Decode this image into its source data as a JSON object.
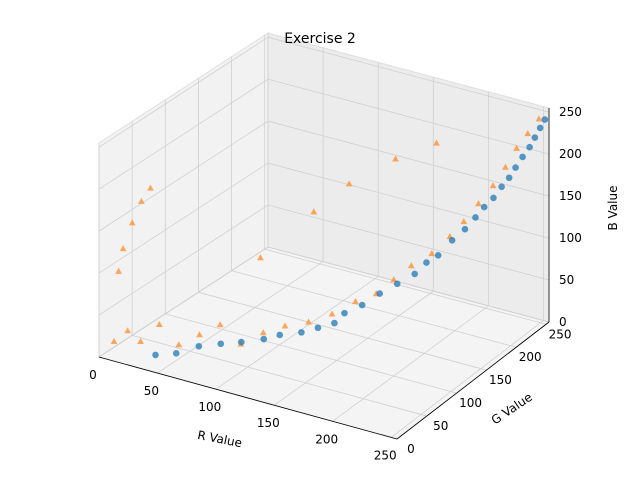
{
  "chart_data": {
    "type": "scatter",
    "projection": "3d",
    "title": "Exercise 2",
    "xlabel": "R Value",
    "ylabel": "G Value",
    "zlabel": "B Value",
    "xlim": [
      0,
      255
    ],
    "ylim": [
      0,
      255
    ],
    "zlim": [
      0,
      255
    ],
    "xticks": [
      0,
      50,
      100,
      150,
      200,
      250
    ],
    "yticks": [
      0,
      50,
      100,
      150,
      200,
      250
    ],
    "zticks": [
      0,
      50,
      100,
      150,
      200,
      250
    ],
    "grid": true,
    "colors": {
      "circles": "#1f77b4",
      "triangles": "#ff7f0e",
      "pane": "#f2f2f2",
      "grid": "#d0d0d0"
    },
    "series": [
      {
        "marker": "circle",
        "points": [
          [
            40,
            15,
            10
          ],
          [
            55,
            20,
            15
          ],
          [
            70,
            28,
            25
          ],
          [
            85,
            35,
            30
          ],
          [
            100,
            40,
            35
          ],
          [
            115,
            48,
            40
          ],
          [
            125,
            55,
            45
          ],
          [
            140,
            62,
            50
          ],
          [
            150,
            70,
            55
          ],
          [
            160,
            78,
            60
          ],
          [
            165,
            85,
            70
          ],
          [
            175,
            95,
            78
          ],
          [
            185,
            105,
            90
          ],
          [
            195,
            115,
            100
          ],
          [
            205,
            125,
            110
          ],
          [
            210,
            135,
            120
          ],
          [
            215,
            145,
            125
          ],
          [
            222,
            155,
            140
          ],
          [
            228,
            165,
            150
          ],
          [
            232,
            175,
            160
          ],
          [
            236,
            182,
            170
          ],
          [
            240,
            190,
            178
          ],
          [
            243,
            198,
            188
          ],
          [
            246,
            205,
            196
          ],
          [
            248,
            212,
            205
          ],
          [
            250,
            220,
            214
          ],
          [
            252,
            228,
            222
          ],
          [
            253,
            235,
            230
          ],
          [
            254,
            242,
            238
          ],
          [
            255,
            248,
            245
          ]
        ]
      },
      {
        "marker": "triangle",
        "points": [
          [
            10,
            5,
            20
          ],
          [
            20,
            8,
            35
          ],
          [
            30,
            10,
            25
          ],
          [
            45,
            12,
            50
          ],
          [
            60,
            15,
            30
          ],
          [
            75,
            20,
            45
          ],
          [
            90,
            25,
            60
          ],
          [
            105,
            30,
            40
          ],
          [
            120,
            38,
            55
          ],
          [
            135,
            45,
            65
          ],
          [
            150,
            55,
            70
          ],
          [
            165,
            65,
            80
          ],
          [
            180,
            75,
            95
          ],
          [
            190,
            90,
            100
          ],
          [
            200,
            100,
            115
          ],
          [
            210,
            110,
            130
          ],
          [
            220,
            125,
            140
          ],
          [
            228,
            140,
            155
          ],
          [
            235,
            150,
            170
          ],
          [
            240,
            165,
            185
          ],
          [
            245,
            180,
            200
          ],
          [
            248,
            195,
            215
          ],
          [
            250,
            210,
            230
          ],
          [
            252,
            225,
            240
          ],
          [
            254,
            240,
            250
          ],
          [
            15,
            10,
            130
          ],
          [
            20,
            15,
            160
          ],
          [
            25,
            20,
            185
          ],
          [
            30,
            25,
            200
          ],
          [
            10,
            12,
            100
          ],
          [
            150,
            120,
            200
          ],
          [
            180,
            140,
            230
          ],
          [
            200,
            170,
            240
          ],
          [
            130,
            100,
            170
          ],
          [
            100,
            70,
            120
          ]
        ]
      }
    ]
  }
}
